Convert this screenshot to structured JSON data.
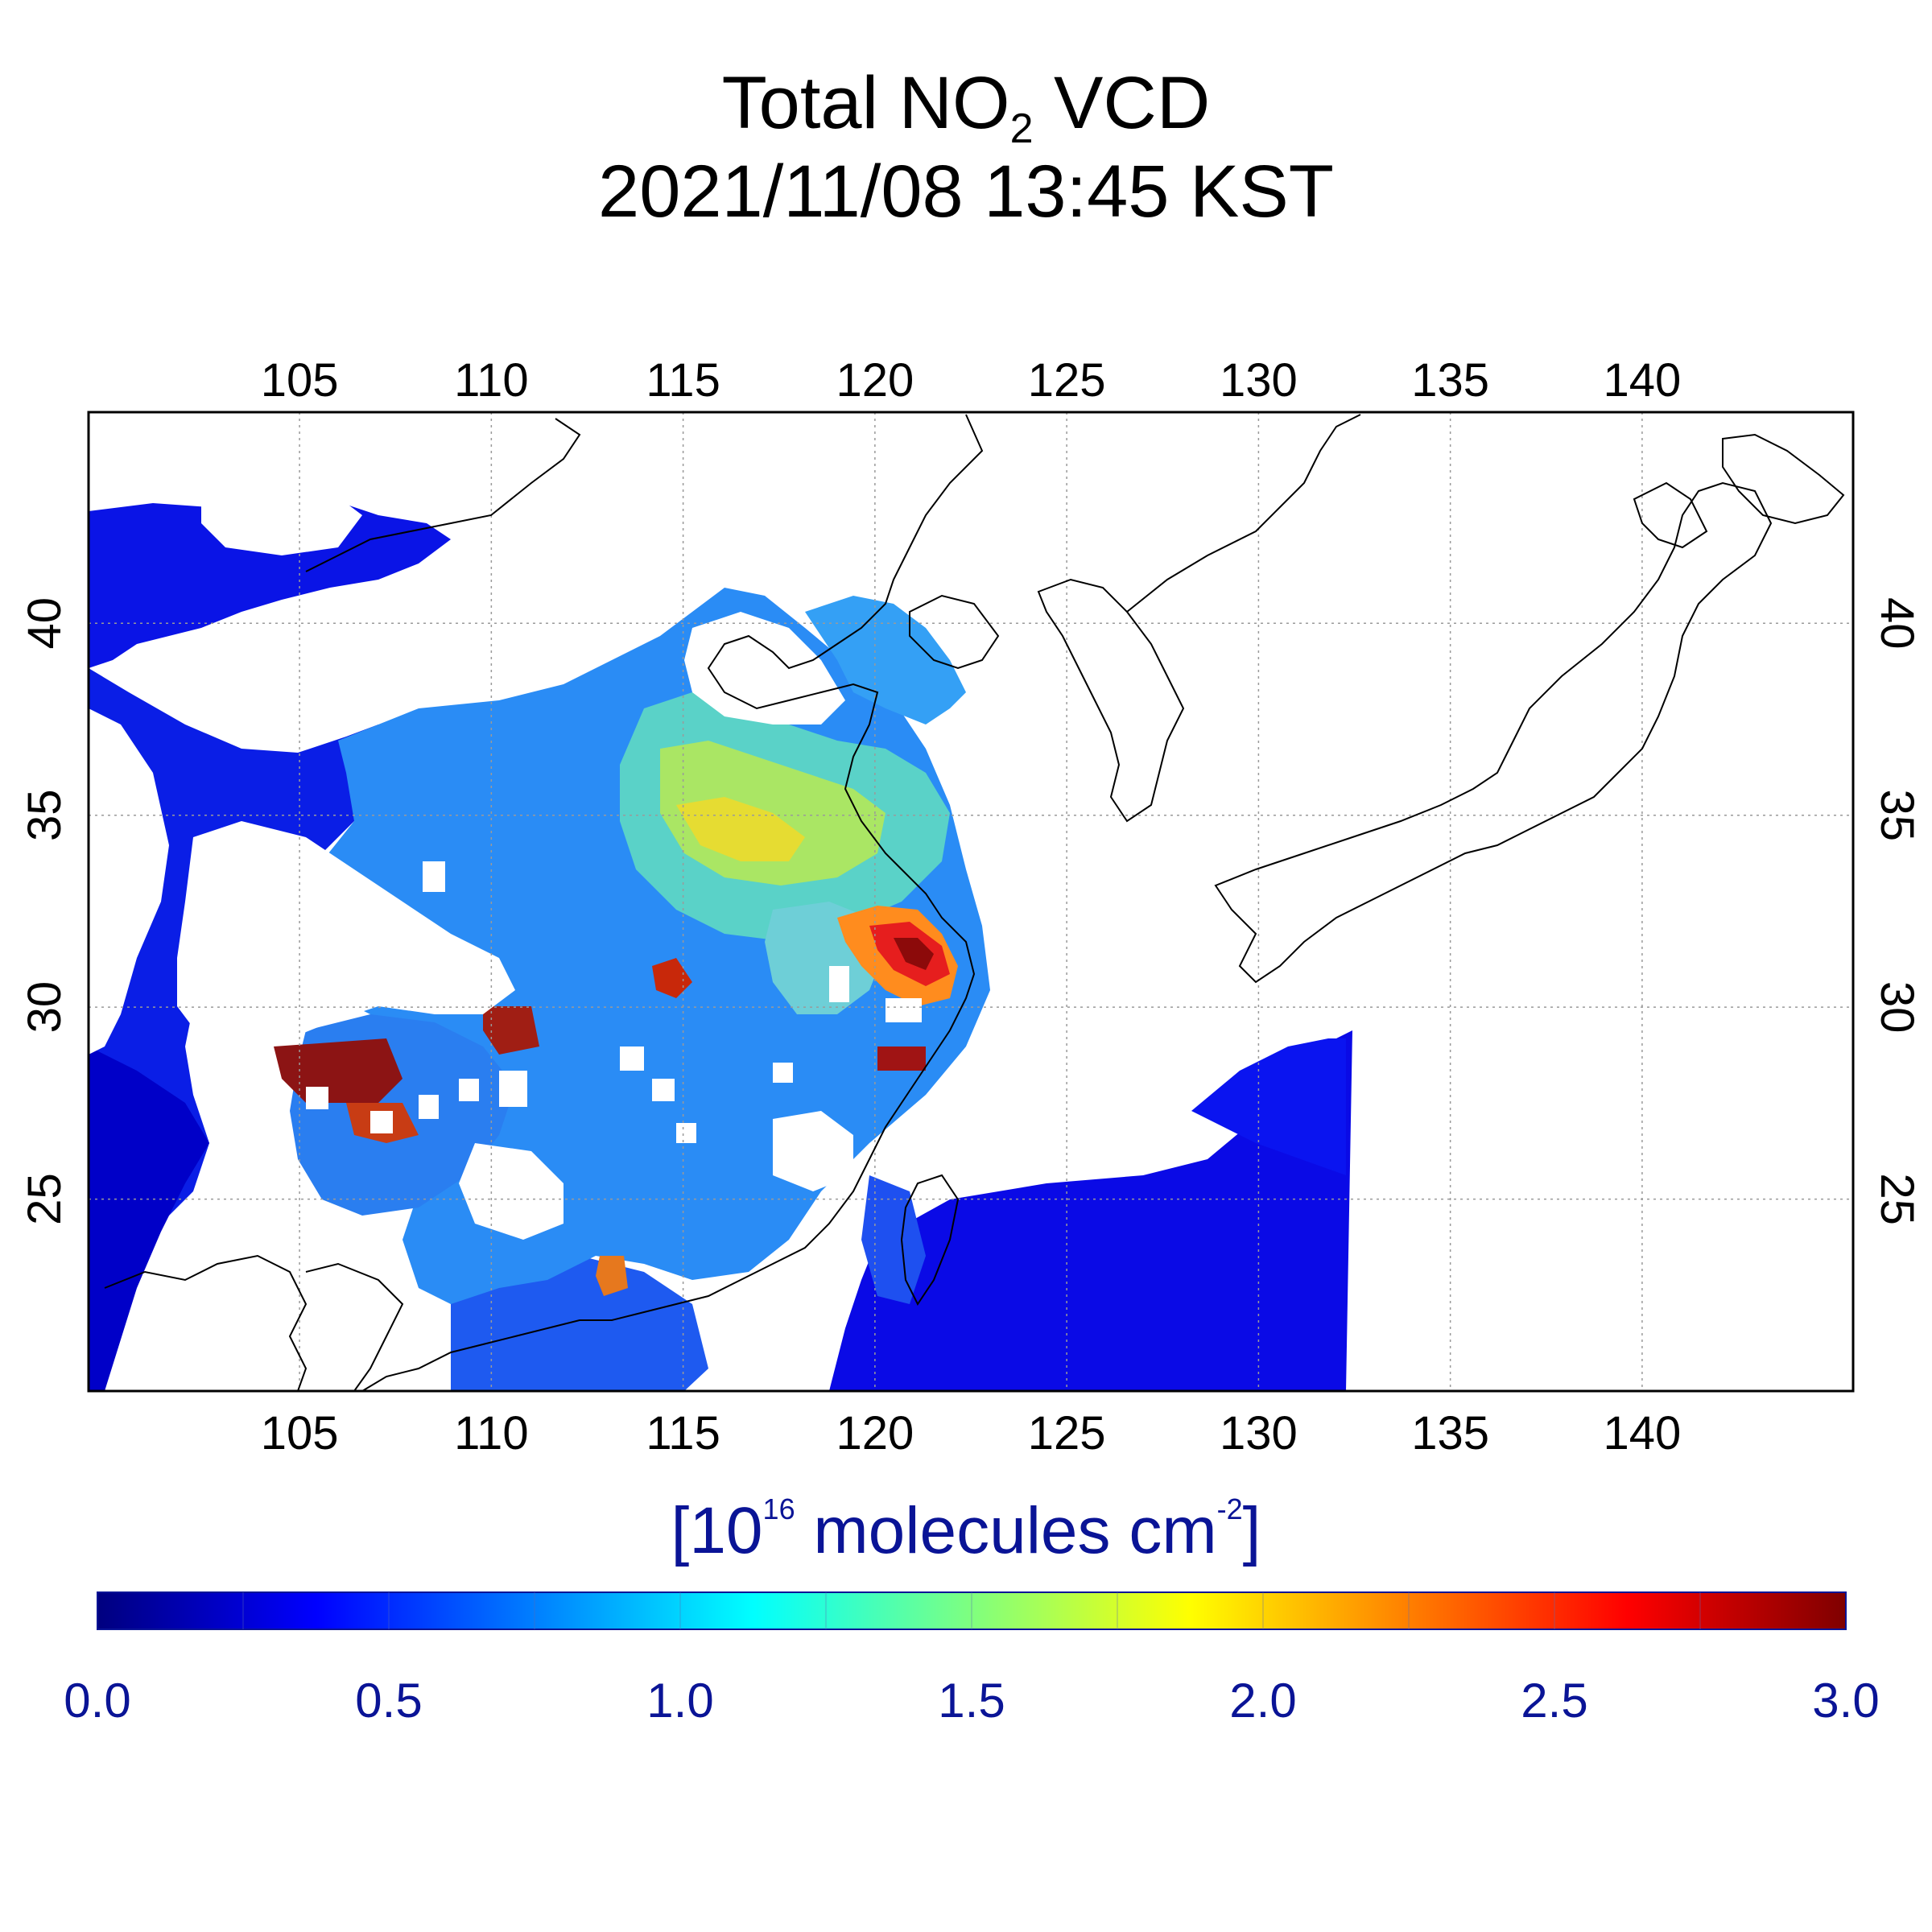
{
  "title": {
    "line1_prefix": "Total NO",
    "line1_sub": "2",
    "line1_suffix": " VCD",
    "line2": "2021/11/08 13:45 KST"
  },
  "map": {
    "lon_ticks": [
      "105",
      "110",
      "115",
      "120",
      "125",
      "130",
      "135",
      "140"
    ],
    "lat_ticks": [
      "40",
      "35",
      "30",
      "25"
    ],
    "grid": true,
    "lon_range": [
      99.5,
      145.5
    ],
    "lat_range": [
      20,
      45.5
    ],
    "colors": {
      "ocean": "#ffffff",
      "coastline": "#000000",
      "no_data": "#ffffff"
    }
  },
  "colorbar": {
    "unit_prefix": "[10",
    "unit_sup1": "16",
    "unit_mid": " molecules cm",
    "unit_sup2": "-2",
    "unit_suffix": "]",
    "min": 0.0,
    "max": 3.0,
    "tick_labels": [
      "0.0",
      "0.5",
      "1.0",
      "1.5",
      "2.0",
      "2.5",
      "3.0"
    ],
    "colormap": [
      "#00007f",
      "#0000ff",
      "#007fff",
      "#00ffff",
      "#7fff7f",
      "#ffff00",
      "#ff7f00",
      "#ff0000",
      "#7f0000"
    ],
    "label_color": "#0a1496"
  }
}
